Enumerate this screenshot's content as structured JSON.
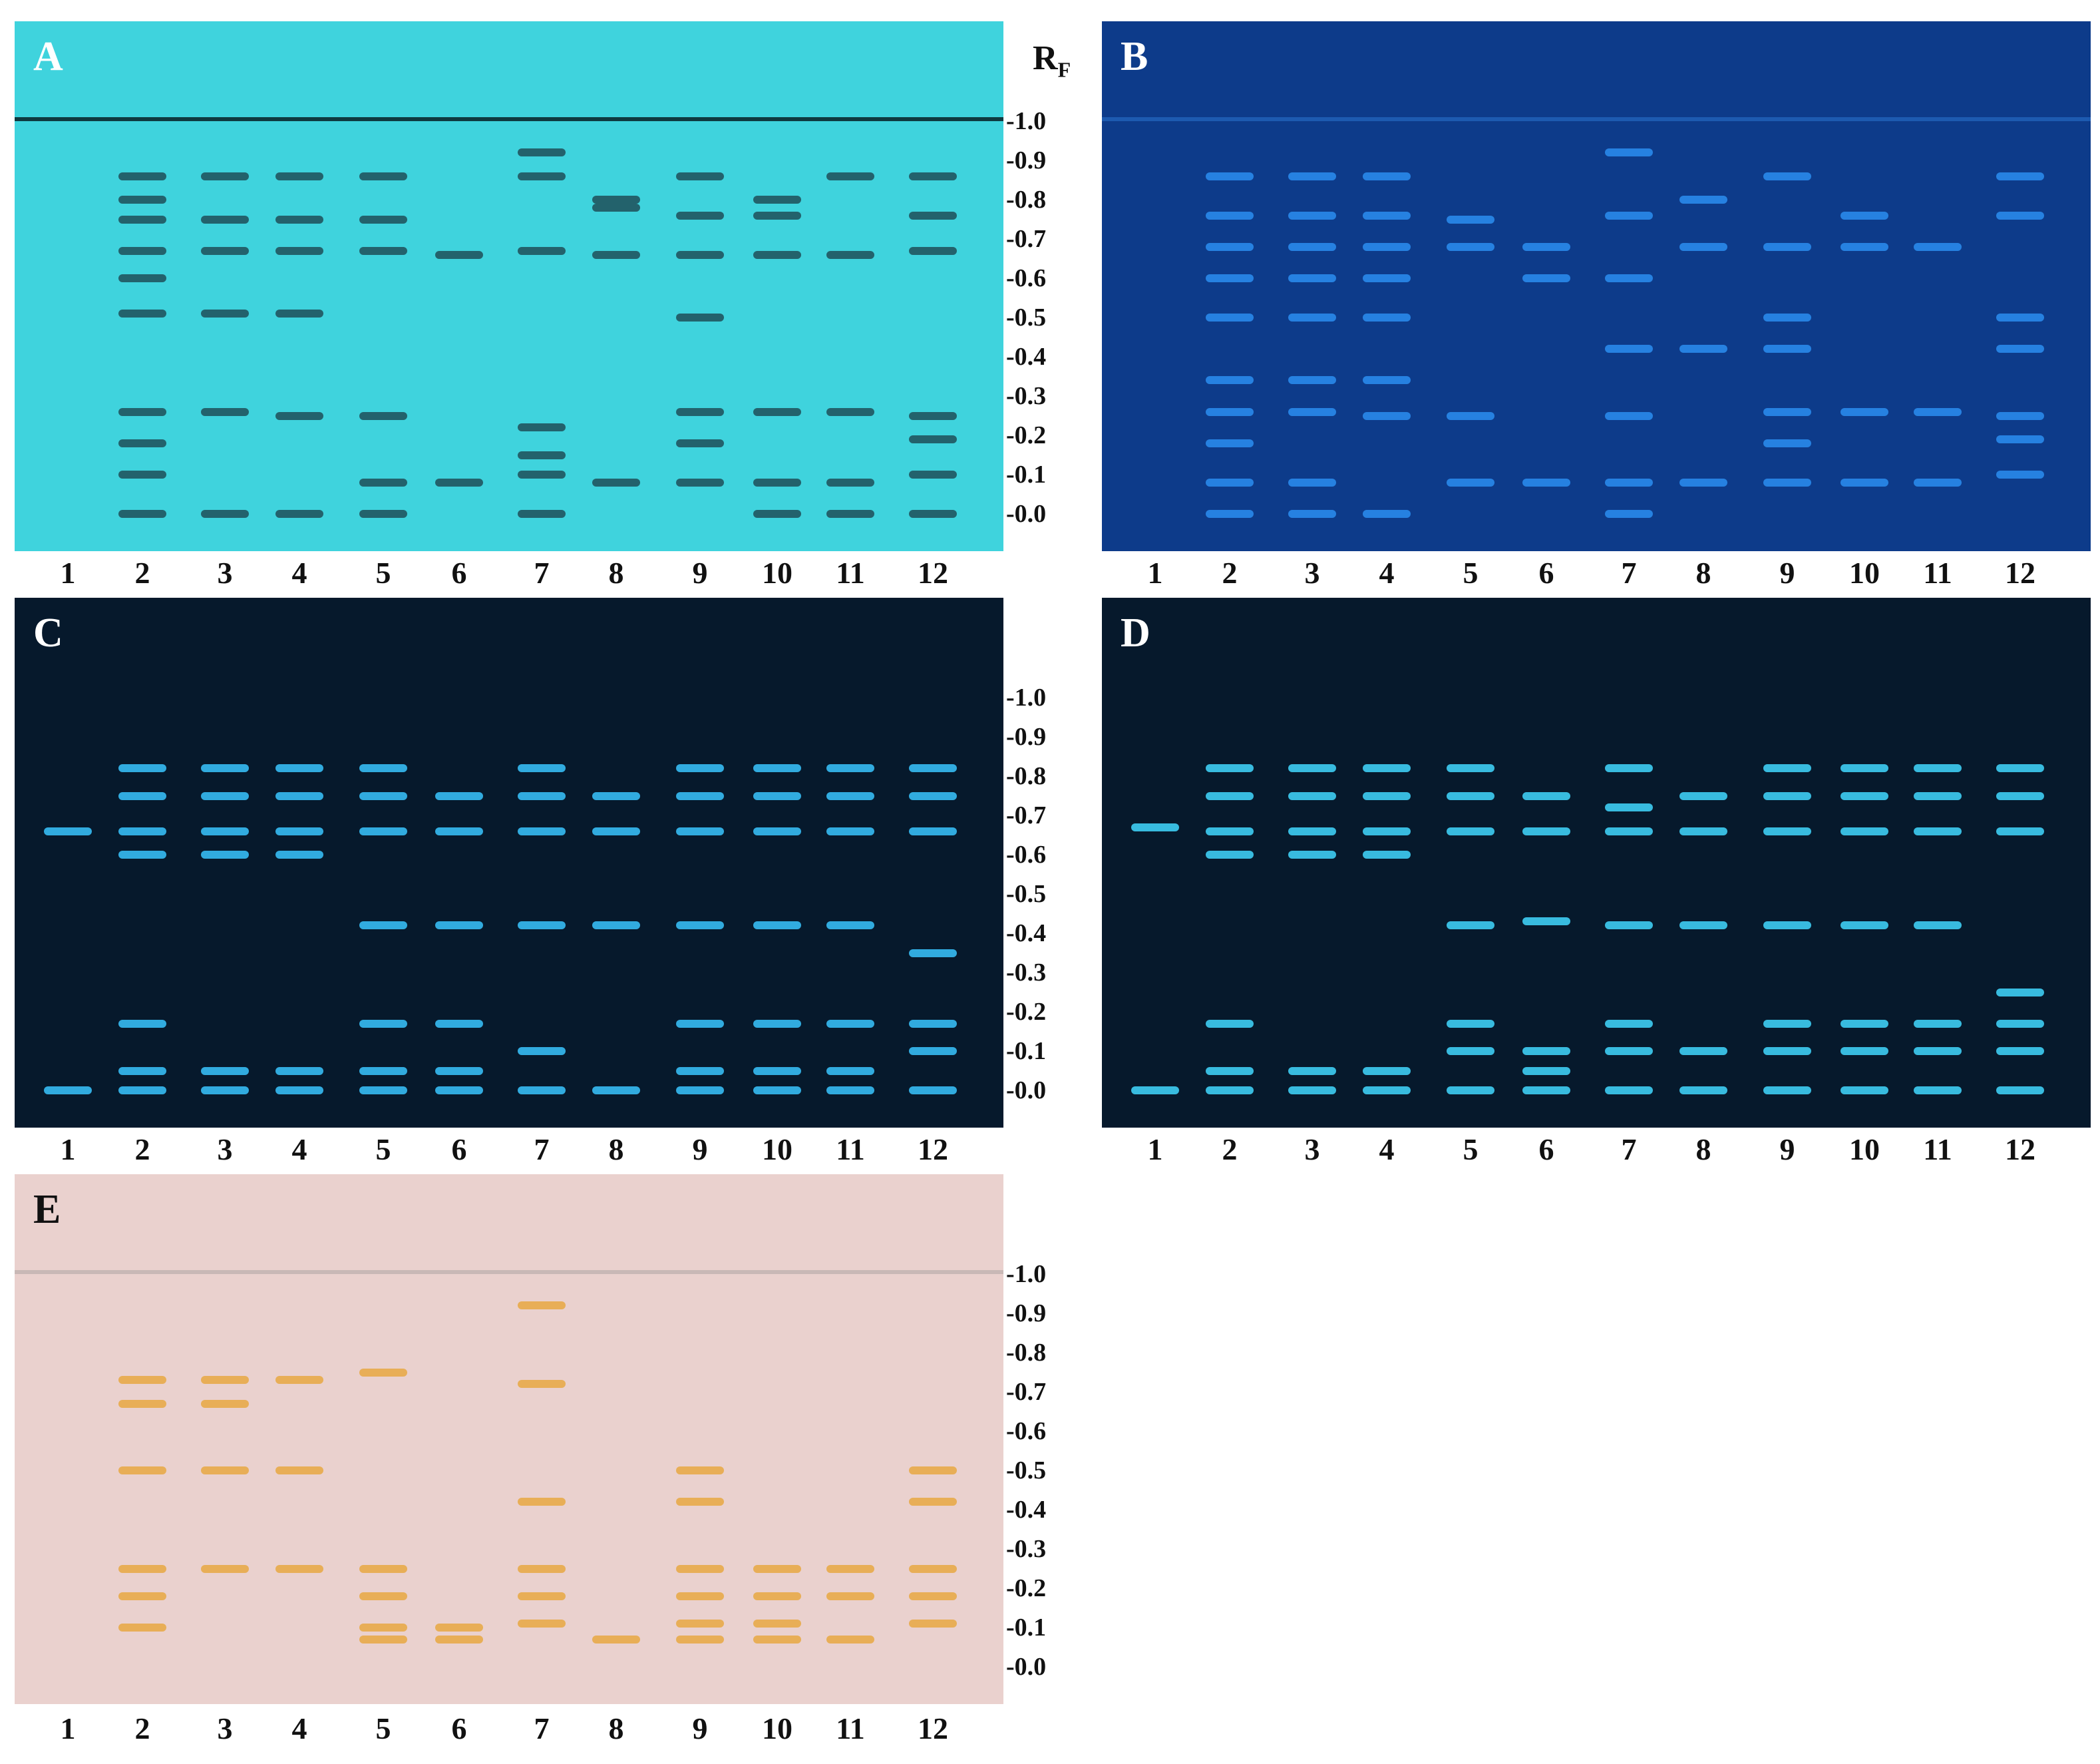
{
  "rf_axis": {
    "title": "R",
    "title_sub": "F",
    "ticks": [
      "-1.0",
      "-0.9",
      "-0.8",
      "-0.7",
      "-0.6",
      "-0.5",
      "-0.4",
      "-0.3",
      "-0.2",
      "-0.1",
      "-0.0"
    ]
  },
  "lane_labels": [
    "1",
    "2",
    "3",
    "4",
    "5",
    "6",
    "7",
    "8",
    "9",
    "10",
    "11",
    "12"
  ],
  "plates": [
    {
      "letter": "A",
      "background": "#3fd3dd",
      "letter_color": "#ffffff",
      "band_color": "#1e4e58",
      "front_color": "#0e3a40",
      "bands": [
        [],
        [
          0.86,
          0.8,
          0.75,
          0.67,
          0.6,
          0.51,
          0.26,
          0.18,
          0.1,
          0.0
        ],
        [
          0.86,
          0.75,
          0.67,
          0.51,
          0.26,
          0.0
        ],
        [
          0.86,
          0.75,
          0.67,
          0.51,
          0.25,
          0.0
        ],
        [
          0.86,
          0.75,
          0.67,
          0.25,
          0.08,
          0.0
        ],
        [
          0.66,
          0.08
        ],
        [
          0.92,
          0.86,
          0.67,
          0.22,
          0.15,
          0.1,
          0.0
        ],
        [
          0.8,
          0.78,
          0.66,
          0.08
        ],
        [
          0.86,
          0.76,
          0.66,
          0.5,
          0.26,
          0.18,
          0.08
        ],
        [
          0.8,
          0.76,
          0.66,
          0.26,
          0.08,
          0.0
        ],
        [
          0.86,
          0.66,
          0.26,
          0.08,
          0.0
        ],
        [
          0.86,
          0.76,
          0.67,
          0.25,
          0.19,
          0.1,
          0.0
        ]
      ]
    },
    {
      "letter": "B",
      "background": "#0d3b8a",
      "letter_color": "#ffffff",
      "band_color": "#2c8ef0",
      "front_color": "#1d5ab0",
      "bands": [
        [],
        [
          0.86,
          0.76,
          0.68,
          0.6,
          0.5,
          0.34,
          0.26,
          0.18,
          0.08,
          0.0
        ],
        [
          0.86,
          0.76,
          0.68,
          0.6,
          0.5,
          0.34,
          0.26,
          0.08,
          0.0
        ],
        [
          0.86,
          0.76,
          0.68,
          0.6,
          0.5,
          0.34,
          0.25,
          0.0
        ],
        [
          0.75,
          0.68,
          0.25,
          0.08
        ],
        [
          0.68,
          0.6,
          0.08
        ],
        [
          0.92,
          0.76,
          0.6,
          0.42,
          0.25,
          0.08,
          0.0
        ],
        [
          0.8,
          0.68,
          0.42,
          0.08
        ],
        [
          0.86,
          0.68,
          0.5,
          0.42,
          0.26,
          0.18,
          0.08
        ],
        [
          0.76,
          0.68,
          0.26,
          0.08
        ],
        [
          0.68,
          0.26,
          0.08
        ],
        [
          0.86,
          0.76,
          0.5,
          0.42,
          0.25,
          0.19,
          0.1
        ]
      ]
    },
    {
      "letter": "C",
      "background": "#06192c",
      "letter_color": "#ffffff",
      "band_color": "#39c6ff",
      "front_color": "#06192c",
      "bands": [
        [
          0.66,
          0.0
        ],
        [
          0.82,
          0.75,
          0.66,
          0.6,
          0.17,
          0.05,
          0.0
        ],
        [
          0.82,
          0.75,
          0.66,
          0.6,
          0.05,
          0.0
        ],
        [
          0.82,
          0.75,
          0.66,
          0.6,
          0.05,
          0.0
        ],
        [
          0.82,
          0.75,
          0.66,
          0.42,
          0.17,
          0.05,
          0.0
        ],
        [
          0.75,
          0.66,
          0.42,
          0.17,
          0.05,
          0.0
        ],
        [
          0.82,
          0.75,
          0.66,
          0.42,
          0.1,
          0.0
        ],
        [
          0.75,
          0.66,
          0.42,
          0.0
        ],
        [
          0.82,
          0.75,
          0.66,
          0.42,
          0.17,
          0.05,
          0.0
        ],
        [
          0.82,
          0.75,
          0.66,
          0.42,
          0.17,
          0.05,
          0.0
        ],
        [
          0.82,
          0.75,
          0.66,
          0.42,
          0.17,
          0.05,
          0.0
        ],
        [
          0.82,
          0.75,
          0.66,
          0.35,
          0.17,
          0.1,
          0.0
        ]
      ]
    },
    {
      "letter": "D",
      "background": "#06192c",
      "letter_color": "#ffffff",
      "band_color": "#42d8ff",
      "front_color": "#06192c",
      "bands": [
        [
          0.67,
          0.0
        ],
        [
          0.82,
          0.75,
          0.66,
          0.6,
          0.17,
          0.05,
          0.0
        ],
        [
          0.82,
          0.75,
          0.66,
          0.6,
          0.05,
          0.0
        ],
        [
          0.82,
          0.75,
          0.66,
          0.6,
          0.05,
          0.0
        ],
        [
          0.82,
          0.75,
          0.66,
          0.42,
          0.17,
          0.1,
          0.0
        ],
        [
          0.75,
          0.66,
          0.43,
          0.1,
          0.05,
          0.0
        ],
        [
          0.82,
          0.72,
          0.66,
          0.42,
          0.17,
          0.1,
          0.0
        ],
        [
          0.75,
          0.66,
          0.42,
          0.1,
          0.0
        ],
        [
          0.82,
          0.75,
          0.66,
          0.42,
          0.17,
          0.1,
          0.0
        ],
        [
          0.82,
          0.75,
          0.66,
          0.42,
          0.17,
          0.1,
          0.0
        ],
        [
          0.82,
          0.75,
          0.66,
          0.42,
          0.17,
          0.1,
          0.0
        ],
        [
          0.82,
          0.75,
          0.66,
          0.25,
          0.17,
          0.1,
          0.0
        ]
      ]
    },
    {
      "letter": "E",
      "background": "#ead1ce",
      "letter_color": "#111111",
      "band_color": "#e7a842",
      "front_color": "#c9b8b6",
      "bands": [
        [],
        [
          0.73,
          0.67,
          0.5,
          0.25,
          0.18,
          0.1
        ],
        [
          0.73,
          0.67,
          0.5,
          0.25
        ],
        [
          0.73,
          0.5,
          0.25
        ],
        [
          0.75,
          0.25,
          0.18,
          0.1,
          0.07
        ],
        [
          0.1,
          0.07
        ],
        [
          0.92,
          0.72,
          0.42,
          0.25,
          0.18,
          0.11
        ],
        [
          0.07
        ],
        [
          0.5,
          0.42,
          0.25,
          0.18,
          0.11,
          0.07
        ],
        [
          0.25,
          0.18,
          0.11,
          0.07
        ],
        [
          0.25,
          0.18,
          0.07
        ],
        [
          0.5,
          0.42,
          0.25,
          0.18,
          0.11
        ]
      ]
    }
  ]
}
